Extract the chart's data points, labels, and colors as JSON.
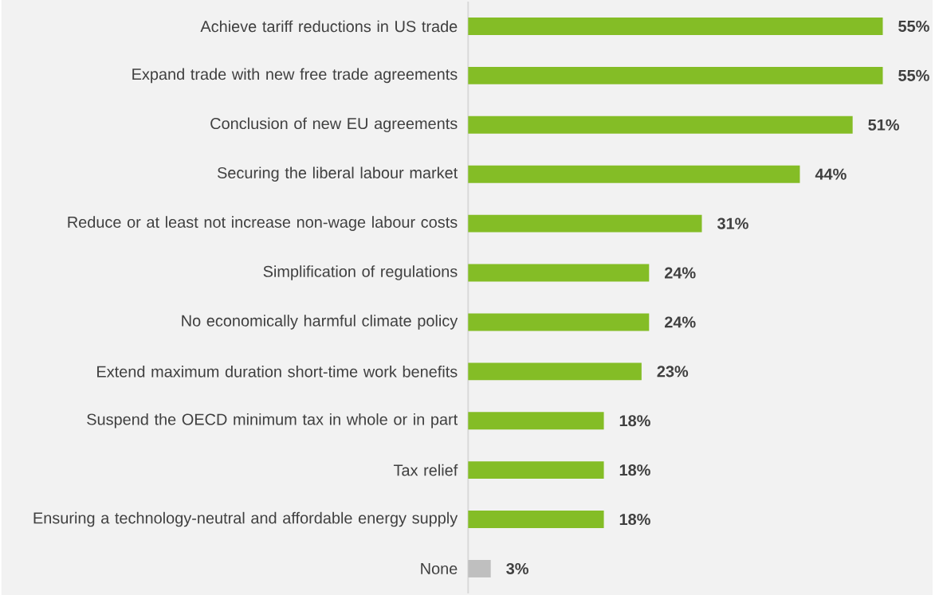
{
  "chart_data": {
    "type": "bar",
    "orientation": "horizontal",
    "categories": [
      "Achieve tariff reductions in US trade",
      "Expand trade with new free trade agreements",
      "Conclusion of new EU agreements",
      "Securing the liberal labour market",
      "Reduce or at least not increase non-wage labour costs",
      "Simplification of regulations",
      "No economically harmful climate policy",
      "Extend maximum duration short-time work benefits",
      "Suspend the OECD minimum tax in whole or in part",
      "Tax relief",
      "Ensuring a technology-neutral and affordable energy supply",
      "None"
    ],
    "values": [
      55,
      55,
      51,
      44,
      31,
      24,
      24,
      23,
      18,
      18,
      18,
      3
    ],
    "value_labels": [
      "55%",
      "55%",
      "51%",
      "44%",
      "31%",
      "24%",
      "24%",
      "23%",
      "18%",
      "18%",
      "18%",
      "3%"
    ],
    "colors": [
      "#84bd26",
      "#84bd26",
      "#84bd26",
      "#84bd26",
      "#84bd26",
      "#84bd26",
      "#84bd26",
      "#84bd26",
      "#84bd26",
      "#84bd26",
      "#84bd26",
      "#bfbfbf"
    ]
  }
}
